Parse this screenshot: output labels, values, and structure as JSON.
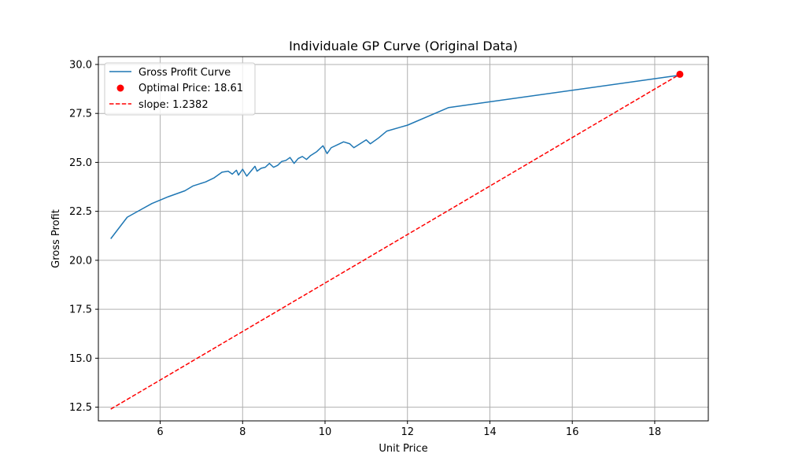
{
  "chart_data": {
    "type": "line",
    "title": "Individuale GP Curve (Original Data)",
    "xlabel": "Unit Price",
    "ylabel": "Gross Profit",
    "xlim": [
      4.5,
      19.3
    ],
    "ylim": [
      11.8,
      30.4
    ],
    "xticks": [
      6,
      8,
      10,
      12,
      14,
      16,
      18
    ],
    "xtick_labels": [
      "6",
      "8",
      "10",
      "12",
      "14",
      "16",
      "18"
    ],
    "yticks": [
      12.5,
      15.0,
      17.5,
      20.0,
      22.5,
      25.0,
      27.5,
      30.0
    ],
    "ytick_labels": [
      "12.5",
      "15.0",
      "17.5",
      "20.0",
      "22.5",
      "25.0",
      "27.5",
      "30.0"
    ],
    "grid": true,
    "legend_position": "top-left",
    "series": [
      {
        "name": "Gross Profit Curve",
        "kind": "line",
        "color": "#1f77b4",
        "x": [
          4.8,
          5.2,
          5.5,
          5.8,
          6.2,
          6.6,
          6.8,
          6.95,
          7.1,
          7.3,
          7.5,
          7.65,
          7.75,
          7.85,
          7.9,
          8.0,
          8.1,
          8.2,
          8.3,
          8.35,
          8.45,
          8.55,
          8.65,
          8.75,
          8.85,
          8.95,
          9.05,
          9.15,
          9.25,
          9.35,
          9.45,
          9.55,
          9.65,
          9.8,
          9.95,
          10.05,
          10.15,
          10.3,
          10.45,
          10.6,
          10.7,
          10.85,
          11.0,
          11.1,
          11.3,
          11.5,
          12.0,
          13.0,
          18.6
        ],
        "y": [
          21.1,
          22.2,
          22.55,
          22.9,
          23.25,
          23.55,
          23.8,
          23.9,
          24.0,
          24.2,
          24.5,
          24.55,
          24.4,
          24.6,
          24.35,
          24.65,
          24.3,
          24.55,
          24.8,
          24.55,
          24.7,
          24.75,
          24.95,
          24.75,
          24.85,
          25.05,
          25.1,
          25.25,
          24.95,
          25.2,
          25.3,
          25.15,
          25.35,
          25.55,
          25.85,
          25.45,
          25.75,
          25.9,
          26.05,
          25.95,
          25.75,
          25.95,
          26.15,
          25.95,
          26.25,
          26.6,
          26.9,
          27.8,
          29.45
        ]
      },
      {
        "name": "Optimal Price: 18.61",
        "kind": "scatter",
        "color": "#ff0000",
        "x": [
          18.61
        ],
        "y": [
          29.5
        ]
      },
      {
        "name": "slope: 1.2382",
        "kind": "dashed-line",
        "color": "#ff0000",
        "x": [
          4.8,
          18.61
        ],
        "y": [
          12.4,
          29.5
        ]
      }
    ]
  }
}
